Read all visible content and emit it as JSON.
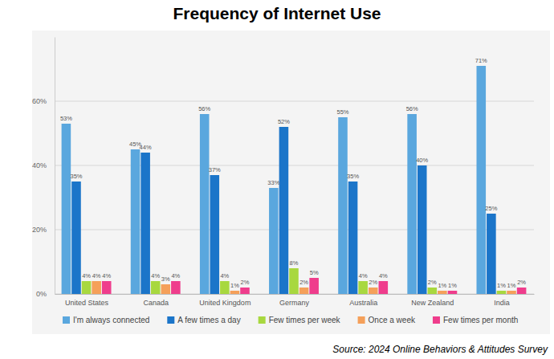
{
  "chart_data": {
    "type": "bar",
    "title": "Frequency of Internet Use",
    "source": "Source: 2024 Online Behaviors & Attitudes Survey",
    "categories": [
      "United States",
      "Canada",
      "United Kingdom",
      "Germany",
      "Australia",
      "New Zealand",
      "India"
    ],
    "series": [
      {
        "name": "I'm always connected",
        "color": "#5aa7de",
        "values": [
          53,
          45,
          56,
          33,
          55,
          56,
          71
        ],
        "value_labels": [
          "53%",
          "45%",
          "56%",
          "33%",
          "55%",
          "56%",
          "71%"
        ]
      },
      {
        "name": "A few times a day",
        "color": "#1b75c9",
        "values": [
          35,
          44,
          37,
          52,
          35,
          40,
          25
        ],
        "value_labels": [
          "35%",
          "44%",
          "37%",
          "52%",
          "35%",
          "40%",
          "25%"
        ]
      },
      {
        "name": "Few times per week",
        "color": "#a8d83f",
        "values": [
          4,
          4,
          4,
          8,
          4,
          2,
          1
        ],
        "value_labels": [
          "4%",
          "4%",
          "4%",
          "8%",
          "4%",
          "2%",
          "1%"
        ]
      },
      {
        "name": "Once a week",
        "color": "#f5a05a",
        "values": [
          4,
          3,
          1,
          2,
          2,
          1,
          1
        ],
        "value_labels": [
          "4%",
          "3%",
          "1%",
          "2%",
          "2%",
          "1%",
          "1%"
        ]
      },
      {
        "name": "Few times per month",
        "color": "#ef3d8c",
        "values": [
          4,
          4,
          2,
          5,
          4,
          1,
          2
        ],
        "value_labels": [
          "4%",
          "4%",
          "2%",
          "5%",
          "4%",
          "1%",
          "2%"
        ]
      }
    ],
    "ylim": [
      0,
      80
    ],
    "yticks": [
      {
        "value": 0,
        "label": "0%"
      },
      {
        "value": 20,
        "label": "20%"
      },
      {
        "value": 40,
        "label": "40%"
      },
      {
        "value": 60,
        "label": "60%"
      }
    ],
    "grid": true,
    "legend": "bottom",
    "data_labels": true
  }
}
